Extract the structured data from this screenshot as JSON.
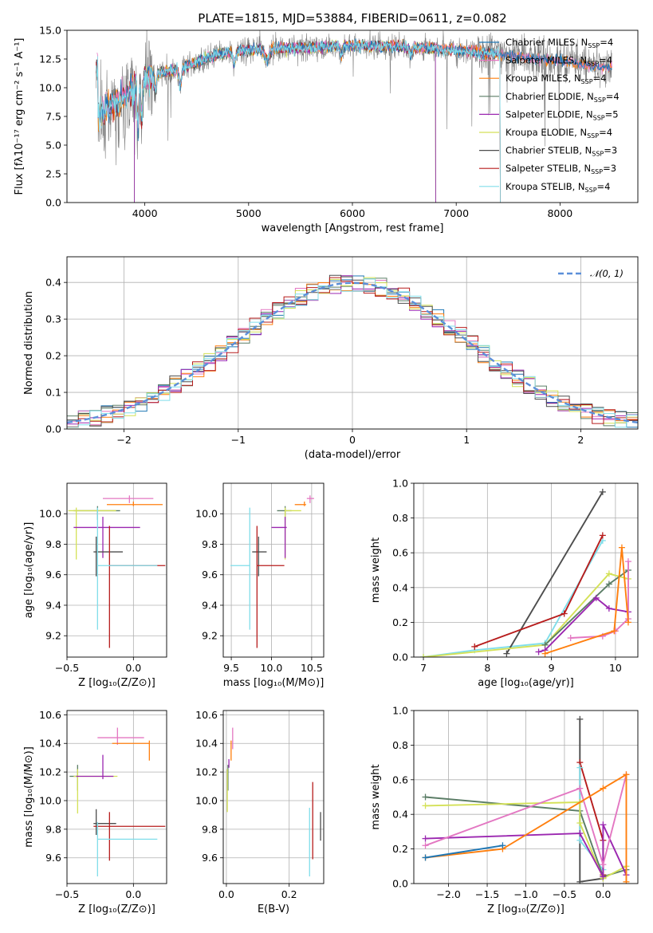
{
  "colors": {
    "chabrier_miles": "#1f77b4",
    "salpeter_miles": "#e377c2",
    "kroupa_miles": "#ff7f0e",
    "chabrier_elodie": "#5b7d66",
    "salpeter_elodie": "#9b27b0",
    "kroupa_elodie": "#d4e157",
    "chabrier_stelib": "#4d4d4d",
    "salpeter_stelib": "#b71c1c",
    "kroupa_stelib": "#80deea",
    "normal": "#5b8fd9",
    "grid": "#b0b0b0",
    "spectrum_grey": "#808080"
  },
  "chart_data": [
    {
      "id": "spectrum",
      "type": "line",
      "title": "PLATE=1815, MJD=53884, FIBERID=0611, z=0.082",
      "xlabel": "wavelength [Angstrom, rest frame]",
      "ylabel": "Flux [fλ10⁻¹⁷ erg cm⁻² s⁻¹ A⁻¹]",
      "xlim": [
        3250,
        8750
      ],
      "ylim": [
        0,
        15
      ],
      "xticks": [
        4000,
        5000,
        6000,
        7000,
        8000
      ],
      "yticks": [
        0.0,
        2.5,
        5.0,
        7.5,
        10.0,
        12.5,
        15.0
      ],
      "legend_position": "right",
      "legend": [
        {
          "label": "Chabrier MILES, N",
          "sub": "SSP",
          "suffix": "=4",
          "color_key": "chabrier_miles"
        },
        {
          "label": "Salpeter MILES, N",
          "sub": "SSP",
          "suffix": "=4",
          "color_key": "salpeter_miles"
        },
        {
          "label": "Kroupa MILES, N",
          "sub": "SSP",
          "suffix": "=4",
          "color_key": "kroupa_miles"
        },
        {
          "label": "Chabrier ELODIE, N",
          "sub": "SSP",
          "suffix": "=4",
          "color_key": "chabrier_elodie"
        },
        {
          "label": "Salpeter ELODIE, N",
          "sub": "SSP",
          "suffix": "=5",
          "color_key": "salpeter_elodie"
        },
        {
          "label": "Kroupa ELODIE, N",
          "sub": "SSP",
          "suffix": "=4",
          "color_key": "kroupa_elodie"
        },
        {
          "label": "Chabrier STELIB, N",
          "sub": "SSP",
          "suffix": "=3",
          "color_key": "chabrier_stelib"
        },
        {
          "label": "Salpeter STELIB, N",
          "sub": "SSP",
          "suffix": "=3",
          "color_key": "salpeter_stelib"
        },
        {
          "label": "Kroupa STELIB, N",
          "sub": "SSP",
          "suffix": "=4",
          "color_key": "kroupa_stelib"
        }
      ],
      "envelope": {
        "x": [
          3550,
          3700,
          3900,
          4000,
          4100,
          4300,
          4500,
          4700,
          5000,
          5300,
          5600,
          6000,
          6400,
          6800,
          7200,
          7600,
          8000,
          8400
        ],
        "y": [
          7.6,
          8.6,
          9.8,
          10.8,
          11.2,
          11.6,
          12.2,
          12.9,
          13.3,
          13.4,
          13.5,
          13.7,
          13.6,
          13.4,
          13.1,
          12.7,
          12.3,
          11.8
        ]
      }
    },
    {
      "id": "residuals",
      "type": "histogram",
      "xlabel": "(data-model)/error",
      "ylabel": "Normed distribution",
      "xlim": [
        -2.5,
        2.5
      ],
      "ylim": [
        0,
        0.47
      ],
      "xticks": [
        -2,
        -1,
        0,
        1,
        2
      ],
      "yticks": [
        0.0,
        0.1,
        0.2,
        0.3,
        0.4
      ],
      "legend_position": "top-right",
      "normal_label": "𝒩(0, 1)",
      "bin_width": 0.1
    },
    {
      "id": "age_vs_Z",
      "type": "errorbar",
      "xlabel": "Z [log₁₀(Z/Z⊙)]",
      "ylabel": "age  [log₁₀(age/yr)]",
      "xlim": [
        -0.5,
        0.25
      ],
      "ylim": [
        9.06,
        10.2
      ],
      "xticks": [
        -0.5,
        0.0
      ],
      "yticks": [
        9.2,
        9.4,
        9.6,
        9.8,
        10.0
      ],
      "points": [
        {
          "key": "salpeter_miles",
          "x": -0.03,
          "xerr": [
            0.2,
            0.18
          ],
          "y": 10.1,
          "yerr": [
            0.03,
            0.02
          ]
        },
        {
          "key": "kroupa_miles",
          "x": 0.0,
          "xerr": [
            0.2,
            0.22
          ],
          "y": 10.06,
          "yerr": [
            0.01,
            0.02
          ]
        },
        {
          "key": "chabrier_elodie",
          "x": -0.27,
          "xerr": [
            0.18,
            0.17
          ],
          "y": 10.02,
          "yerr": [
            0.06,
            0.03
          ]
        },
        {
          "key": "kroupa_elodie",
          "x": -0.43,
          "xerr": [
            0.06,
            0.3
          ],
          "y": 10.02,
          "yerr": [
            0.32,
            0.02
          ]
        },
        {
          "key": "salpeter_elodie",
          "x": -0.23,
          "xerr": [
            0.22,
            0.28
          ],
          "y": 9.91,
          "yerr": [
            0.2,
            0.07
          ]
        },
        {
          "key": "chabrier_stelib",
          "x": -0.28,
          "xerr": [
            0.02,
            0.2
          ],
          "y": 9.75,
          "yerr": [
            0.16,
            0.1
          ]
        },
        {
          "key": "salpeter_stelib",
          "x": -0.18,
          "xerr": [
            0.0,
            0.42
          ],
          "y": 9.66,
          "yerr": [
            0.54,
            0.26
          ]
        },
        {
          "key": "kroupa_stelib",
          "x": -0.27,
          "xerr": [
            0.0,
            0.45
          ],
          "y": 9.66,
          "yerr": [
            0.42,
            0.38
          ]
        }
      ]
    },
    {
      "id": "age_vs_mass",
      "type": "errorbar",
      "xlabel": "mass [log₁₀(M/M⊙)]",
      "ylabel": "",
      "xlim": [
        9.4,
        10.65
      ],
      "ylim": [
        9.06,
        10.2
      ],
      "xticks": [
        9.5,
        10.0,
        10.5
      ],
      "yticks": [
        9.2,
        9.4,
        9.6,
        9.8,
        10.0
      ],
      "points": [
        {
          "key": "salpeter_miles",
          "x": 10.48,
          "xerr": [
            0.04,
            0.05
          ],
          "y": 10.1,
          "yerr": [
            0.03,
            0.02
          ]
        },
        {
          "key": "kroupa_miles",
          "x": 10.41,
          "xerr": [
            0.12,
            0.02
          ],
          "y": 10.06,
          "yerr": [
            0.01,
            0.02
          ]
        },
        {
          "key": "chabrier_elodie",
          "x": 10.17,
          "xerr": [
            0.1,
            0.08
          ],
          "y": 10.02,
          "yerr": [
            0.06,
            0.03
          ]
        },
        {
          "key": "kroupa_elodie",
          "x": 10.17,
          "xerr": [
            0.0,
            0.2
          ],
          "y": 10.02,
          "yerr": [
            0.32,
            0.02
          ]
        },
        {
          "key": "salpeter_elodie",
          "x": 10.17,
          "xerr": [
            0.17,
            0.02
          ],
          "y": 9.91,
          "yerr": [
            0.2,
            0.07
          ]
        },
        {
          "key": "chabrier_stelib",
          "x": 9.84,
          "xerr": [
            0.08,
            0.1
          ],
          "y": 9.75,
          "yerr": [
            0.16,
            0.1
          ]
        },
        {
          "key": "salpeter_stelib",
          "x": 9.82,
          "xerr": [
            0.0,
            0.34
          ],
          "y": 9.66,
          "yerr": [
            0.54,
            0.26
          ]
        },
        {
          "key": "kroupa_stelib",
          "x": 9.73,
          "xerr": [
            0.24,
            0.0
          ],
          "y": 9.66,
          "yerr": [
            0.42,
            0.38
          ]
        }
      ]
    },
    {
      "id": "weight_vs_age",
      "type": "line",
      "xlabel": "age  [log₁₀(age/yr)]",
      "ylabel": "mass weight",
      "xlim": [
        6.85,
        10.35
      ],
      "ylim": [
        0,
        1
      ],
      "xticks": [
        7,
        8,
        9,
        10
      ],
      "yticks": [
        0.0,
        0.2,
        0.4,
        0.6,
        0.8,
        1.0
      ],
      "series": [
        {
          "key": "kroupa_stelib",
          "x": [
            7.0,
            7.8,
            8.9,
            9.8
          ],
          "y": [
            0.0,
            0.04,
            0.08,
            0.67
          ]
        },
        {
          "key": "chabrier_stelib",
          "x": [
            8.3,
            9.8
          ],
          "y": [
            0.02,
            0.95
          ]
        },
        {
          "key": "salpeter_stelib",
          "x": [
            7.8,
            9.2,
            9.8
          ],
          "y": [
            0.06,
            0.25,
            0.7
          ]
        },
        {
          "key": "kroupa_elodie",
          "x": [
            7.0,
            8.9,
            9.9,
            10.2
          ],
          "y": [
            0.0,
            0.07,
            0.48,
            0.45
          ]
        },
        {
          "key": "chabrier_elodie",
          "x": [
            8.9,
            9.9,
            10.2
          ],
          "y": [
            0.07,
            0.42,
            0.5
          ]
        },
        {
          "key": "salpeter_elodie",
          "x": [
            8.8,
            8.9,
            9.7,
            9.9,
            10.2
          ],
          "y": [
            0.03,
            0.04,
            0.34,
            0.28,
            0.26
          ]
        },
        {
          "key": "salpeter_miles",
          "x": [
            9.3,
            9.8,
            10.0,
            10.2,
            10.2
          ],
          "y": [
            0.11,
            0.12,
            0.15,
            0.22,
            0.55
          ]
        },
        {
          "key": "kroupa_miles",
          "x": [
            8.9,
            9.98,
            10.1,
            10.2
          ],
          "y": [
            0.02,
            0.15,
            0.63,
            0.2
          ]
        }
      ]
    },
    {
      "id": "mass_vs_Z",
      "type": "errorbar",
      "xlabel": "Z [log₁₀(Z/Z⊙)]",
      "ylabel": "mass [log₁₀(M/M⊙)]",
      "xlim": [
        -0.5,
        0.25
      ],
      "ylim": [
        9.42,
        10.63
      ],
      "xticks": [
        -0.5,
        0.0
      ],
      "yticks": [
        9.6,
        9.8,
        10.0,
        10.2,
        10.4,
        10.6
      ],
      "points": [
        {
          "key": "salpeter_miles",
          "x": -0.12,
          "xerr": [
            0.15,
            0.2
          ],
          "y": 10.44,
          "yerr": [
            0.05,
            0.07
          ]
        },
        {
          "key": "kroupa_miles",
          "x": 0.12,
          "xerr": [
            0.28,
            0.0
          ],
          "y": 10.4,
          "yerr": [
            0.12,
            0.02
          ]
        },
        {
          "key": "chabrier_elodie",
          "x": -0.42,
          "xerr": [
            0.06,
            0.0
          ],
          "y": 10.17,
          "yerr": [
            0.1,
            0.08
          ]
        },
        {
          "key": "kroupa_elodie",
          "x": -0.42,
          "xerr": [
            0.03,
            0.3
          ],
          "y": 10.17,
          "yerr": [
            0.26,
            0.05
          ]
        },
        {
          "key": "salpeter_elodie",
          "x": -0.23,
          "xerr": [
            0.2,
            0.08
          ],
          "y": 10.17,
          "yerr": [
            0.02,
            0.15
          ]
        },
        {
          "key": "chabrier_stelib",
          "x": -0.28,
          "xerr": [
            0.02,
            0.15
          ],
          "y": 9.84,
          "yerr": [
            0.08,
            0.1
          ]
        },
        {
          "key": "salpeter_stelib",
          "x": -0.18,
          "xerr": [
            0.12,
            0.42
          ],
          "y": 9.82,
          "yerr": [
            0.24,
            0.1
          ]
        },
        {
          "key": "kroupa_stelib",
          "x": -0.27,
          "xerr": [
            0.0,
            0.45
          ],
          "y": 9.73,
          "yerr": [
            0.26,
            0.12
          ]
        }
      ]
    },
    {
      "id": "mass_vs_ebv",
      "type": "errorbar",
      "xlabel": "E(B-V)",
      "ylabel": "",
      "xlim": [
        -0.01,
        0.31
      ],
      "ylim": [
        9.42,
        10.63
      ],
      "xticks": [
        0.0,
        0.2
      ],
      "yticks": [
        9.6,
        9.8,
        10.0,
        10.2,
        10.4,
        10.6
      ],
      "points": [
        {
          "key": "salpeter_miles",
          "x": 0.02,
          "xerr": [
            0.0,
            0.0
          ],
          "y": 10.44,
          "yerr": [
            0.08,
            0.07
          ]
        },
        {
          "key": "kroupa_miles",
          "x": 0.015,
          "xerr": [
            0.0,
            0.0
          ],
          "y": 10.4,
          "yerr": [
            0.12,
            0.02
          ]
        },
        {
          "key": "chabrier_elodie",
          "x": 0.005,
          "xerr": [
            0.0,
            0.0
          ],
          "y": 10.17,
          "yerr": [
            0.1,
            0.08
          ]
        },
        {
          "key": "kroupa_elodie",
          "x": 0.003,
          "xerr": [
            0.0,
            0.0
          ],
          "y": 10.17,
          "yerr": [
            0.25,
            0.05
          ]
        },
        {
          "key": "salpeter_elodie",
          "x": 0.008,
          "xerr": [
            0.0,
            0.0
          ],
          "y": 10.27,
          "yerr": [
            0.04,
            0.02
          ]
        },
        {
          "key": "chabrier_stelib",
          "x": 0.3,
          "xerr": [
            0.0,
            0.0
          ],
          "y": 9.82,
          "yerr": [
            0.1,
            0.1
          ]
        },
        {
          "key": "salpeter_stelib",
          "x": 0.275,
          "xerr": [
            0.0,
            0.0
          ],
          "y": 9.85,
          "yerr": [
            0.26,
            0.28
          ]
        },
        {
          "key": "kroupa_stelib",
          "x": 0.265,
          "xerr": [
            0.0,
            0.0
          ],
          "y": 9.72,
          "yerr": [
            0.25,
            0.23
          ]
        }
      ]
    },
    {
      "id": "weight_vs_Z",
      "type": "line",
      "xlabel": "Z [log₁₀(Z/Z⊙)]",
      "ylabel": "mass weight",
      "xlim": [
        -2.45,
        0.45
      ],
      "ylim": [
        0,
        1
      ],
      "xticks": [
        -2.0,
        -1.5,
        -1.0,
        -0.5,
        0.0
      ],
      "yticks": [
        0.0,
        0.2,
        0.4,
        0.6,
        0.8,
        1.0
      ],
      "series": [
        {
          "key": "chabrier_stelib",
          "x": [
            -0.3,
            -0.3,
            0.0
          ],
          "y": [
            0.95,
            0.01,
            0.03
          ]
        },
        {
          "key": "salpeter_stelib",
          "x": [
            -0.3,
            0.0,
            0.0
          ],
          "y": [
            0.7,
            0.25,
            0.05
          ]
        },
        {
          "key": "kroupa_stelib",
          "x": [
            -0.3,
            -0.3,
            0.0
          ],
          "y": [
            0.67,
            0.25,
            0.08
          ]
        },
        {
          "key": "chabrier_elodie",
          "x": [
            -2.3,
            -0.3,
            0.0,
            0.3
          ],
          "y": [
            0.5,
            0.42,
            0.04,
            0.08
          ]
        },
        {
          "key": "kroupa_elodie",
          "x": [
            -2.3,
            -0.3,
            -0.3,
            0.0,
            0.3
          ],
          "y": [
            0.45,
            0.47,
            0.35,
            0.03,
            0.1
          ]
        },
        {
          "key": "salpeter_elodie",
          "x": [
            -2.3,
            -0.3,
            0.0,
            0.0,
            0.3
          ],
          "y": [
            0.26,
            0.29,
            0.04,
            0.34,
            0.05
          ]
        },
        {
          "key": "salpeter_miles",
          "x": [
            -2.3,
            -0.3,
            0.0,
            0.3
          ],
          "y": [
            0.22,
            0.55,
            0.11,
            0.63
          ]
        },
        {
          "key": "kroupa_miles",
          "x": [
            -2.3,
            -1.3,
            0.0,
            0.3,
            0.3
          ],
          "y": [
            0.15,
            0.2,
            0.55,
            0.63,
            0.01
          ]
        },
        {
          "key": "chabrier_miles",
          "x": [
            -2.3,
            -1.3
          ],
          "y": [
            0.15,
            0.22
          ]
        }
      ]
    }
  ]
}
